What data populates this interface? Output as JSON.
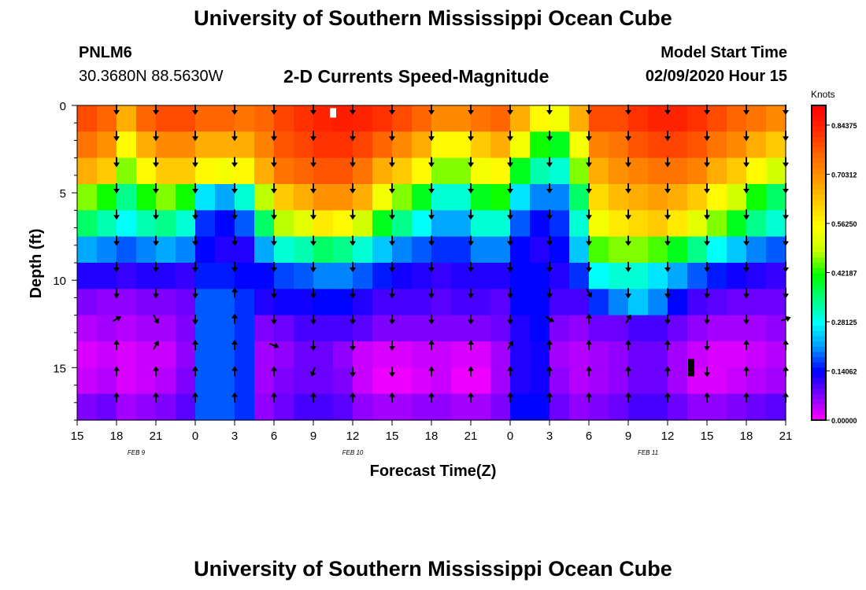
{
  "page": {
    "title": "University of Southern Mississippi Ocean Cube",
    "bottom_title": "University of Southern Mississippi Ocean Cube",
    "station": "PNLM6",
    "coords": "30.3680N 88.5630W",
    "subtitle": "2-D Currents Speed-Magnitude",
    "model_label": "Model Start Time",
    "model_time": "02/09/2020 Hour 15"
  },
  "chart_data": {
    "type": "heatmap",
    "title": "2-D Currents Speed-Magnitude",
    "xlabel": "Forecast Time(Z)",
    "ylabel": "Depth (ft)",
    "x_ticks": [
      "15",
      "18",
      "21",
      "0",
      "3",
      "6",
      "9",
      "12",
      "15",
      "18",
      "21",
      "0",
      "3",
      "6",
      "9",
      "12",
      "15",
      "18",
      "21"
    ],
    "x_day_labels": [
      {
        "label": "FEB 9",
        "at_tick": 1.5
      },
      {
        "label": "FEB 10",
        "at_tick": 7
      },
      {
        "label": "FEB 11",
        "at_tick": 14.5
      }
    ],
    "x_range_hours": [
      0,
      54
    ],
    "y_ticks": [
      0,
      5,
      10,
      15
    ],
    "y_range_ft": [
      0,
      18
    ],
    "colorbar": {
      "unit": "Knots",
      "min": 0,
      "max": 0.9,
      "labels": [
        "0.84375",
        "0.70312",
        "0.56250",
        "0.42187",
        "0.28125",
        "0.14062",
        "0.00000"
      ],
      "colors": [
        "#ff00ff",
        "#8000ff",
        "#0000ff",
        "#0096ff",
        "#00ffff",
        "#00ff80",
        "#00ff00",
        "#c8ff00",
        "#ffff00",
        "#ffc800",
        "#ff9600",
        "#ff6400",
        "#ff2800",
        "#ff0000"
      ]
    },
    "time_hours": [
      0,
      1.5,
      3,
      4.5,
      6,
      7.5,
      9,
      10.5,
      12,
      13.5,
      15,
      16.5,
      18,
      19.5,
      21,
      22.5,
      24,
      25.5,
      27,
      28.5,
      30,
      31.5,
      33,
      34.5,
      36,
      37.5,
      39,
      40.5,
      42,
      43.5,
      45,
      46.5,
      48,
      49.5,
      51,
      52.5
    ],
    "depth_ft": [
      0,
      1.5,
      3,
      4.5,
      6,
      7.5,
      9,
      10.5,
      12,
      13.5,
      15,
      16.5
    ],
    "speed_knots": [
      [
        0.79,
        0.76,
        0.66,
        0.76,
        0.79,
        0.79,
        0.76,
        0.76,
        0.74,
        0.76,
        0.8,
        0.82,
        0.84,
        0.85,
        0.84,
        0.82,
        0.79,
        0.76,
        0.71,
        0.71,
        0.74,
        0.76,
        0.66,
        0.56,
        0.54,
        0.66,
        0.79,
        0.79,
        0.82,
        0.84,
        0.84,
        0.82,
        0.79,
        0.76,
        0.74,
        0.71
      ],
      [
        0.74,
        0.7,
        0.56,
        0.66,
        0.71,
        0.71,
        0.66,
        0.66,
        0.66,
        0.72,
        0.78,
        0.8,
        0.82,
        0.82,
        0.8,
        0.76,
        0.71,
        0.66,
        0.56,
        0.56,
        0.62,
        0.66,
        0.54,
        0.42,
        0.4,
        0.54,
        0.72,
        0.74,
        0.78,
        0.8,
        0.8,
        0.78,
        0.74,
        0.71,
        0.66,
        0.62
      ],
      [
        0.66,
        0.62,
        0.46,
        0.56,
        0.62,
        0.62,
        0.56,
        0.54,
        0.56,
        0.66,
        0.74,
        0.76,
        0.78,
        0.78,
        0.74,
        0.66,
        0.62,
        0.56,
        0.46,
        0.46,
        0.54,
        0.56,
        0.4,
        0.32,
        0.3,
        0.46,
        0.66,
        0.7,
        0.72,
        0.74,
        0.74,
        0.72,
        0.66,
        0.62,
        0.56,
        0.5
      ],
      [
        0.46,
        0.42,
        0.34,
        0.42,
        0.46,
        0.42,
        0.26,
        0.22,
        0.3,
        0.48,
        0.62,
        0.66,
        0.7,
        0.7,
        0.66,
        0.54,
        0.46,
        0.4,
        0.3,
        0.3,
        0.4,
        0.42,
        0.26,
        0.2,
        0.2,
        0.36,
        0.6,
        0.64,
        0.66,
        0.68,
        0.66,
        0.62,
        0.56,
        0.5,
        0.42,
        0.36
      ],
      [
        0.36,
        0.32,
        0.28,
        0.32,
        0.34,
        0.3,
        0.16,
        0.14,
        0.18,
        0.36,
        0.48,
        0.52,
        0.58,
        0.56,
        0.5,
        0.4,
        0.34,
        0.28,
        0.22,
        0.22,
        0.3,
        0.3,
        0.18,
        0.14,
        0.16,
        0.3,
        0.54,
        0.58,
        0.6,
        0.62,
        0.58,
        0.52,
        0.46,
        0.4,
        0.34,
        0.3
      ],
      [
        0.22,
        0.2,
        0.18,
        0.2,
        0.22,
        0.2,
        0.14,
        0.12,
        0.12,
        0.22,
        0.3,
        0.32,
        0.36,
        0.34,
        0.3,
        0.24,
        0.2,
        0.18,
        0.16,
        0.16,
        0.2,
        0.2,
        0.14,
        0.12,
        0.14,
        0.24,
        0.44,
        0.46,
        0.46,
        0.44,
        0.4,
        0.34,
        0.28,
        0.24,
        0.2,
        0.18
      ],
      [
        0.12,
        0.12,
        0.11,
        0.12,
        0.12,
        0.11,
        0.15,
        0.15,
        0.14,
        0.14,
        0.17,
        0.18,
        0.2,
        0.2,
        0.18,
        0.15,
        0.13,
        0.12,
        0.11,
        0.12,
        0.12,
        0.12,
        0.14,
        0.14,
        0.12,
        0.16,
        0.28,
        0.3,
        0.3,
        0.26,
        0.22,
        0.18,
        0.15,
        0.13,
        0.12,
        0.11
      ],
      [
        0.07,
        0.06,
        0.06,
        0.07,
        0.07,
        0.08,
        0.18,
        0.18,
        0.16,
        0.12,
        0.13,
        0.13,
        0.14,
        0.14,
        0.12,
        0.1,
        0.1,
        0.1,
        0.09,
        0.1,
        0.1,
        0.09,
        0.14,
        0.14,
        0.1,
        0.1,
        0.16,
        0.2,
        0.24,
        0.2,
        0.14,
        0.1,
        0.09,
        0.08,
        0.08,
        0.08
      ],
      [
        0.04,
        0.05,
        0.04,
        0.05,
        0.05,
        0.07,
        0.18,
        0.18,
        0.16,
        0.07,
        0.08,
        0.1,
        0.1,
        0.1,
        0.09,
        0.07,
        0.07,
        0.07,
        0.07,
        0.07,
        0.07,
        0.08,
        0.12,
        0.14,
        0.07,
        0.06,
        0.08,
        0.08,
        0.1,
        0.1,
        0.08,
        0.06,
        0.05,
        0.05,
        0.05,
        0.06
      ],
      [
        0.02,
        0.03,
        0.02,
        0.03,
        0.03,
        0.06,
        0.18,
        0.18,
        0.16,
        0.05,
        0.06,
        0.08,
        0.08,
        0.06,
        0.03,
        0.02,
        0.02,
        0.03,
        0.03,
        0.02,
        0.02,
        0.05,
        0.12,
        0.13,
        0.05,
        0.04,
        0.05,
        0.06,
        0.08,
        0.08,
        0.05,
        0.03,
        0.02,
        0.02,
        0.03,
        0.04
      ],
      [
        0.03,
        0.04,
        0.02,
        0.03,
        0.04,
        0.07,
        0.18,
        0.18,
        0.16,
        0.05,
        0.07,
        0.08,
        0.08,
        0.07,
        0.03,
        0.01,
        0.01,
        0.02,
        0.03,
        0.01,
        0.01,
        0.05,
        0.12,
        0.13,
        0.06,
        0.04,
        0.05,
        0.06,
        0.08,
        0.08,
        0.05,
        0.02,
        0.02,
        0.03,
        0.04,
        0.05
      ],
      [
        0.07,
        0.08,
        0.05,
        0.06,
        0.07,
        0.09,
        0.18,
        0.18,
        0.16,
        0.06,
        0.08,
        0.1,
        0.1,
        0.09,
        0.06,
        0.05,
        0.05,
        0.06,
        0.06,
        0.05,
        0.05,
        0.07,
        0.14,
        0.14,
        0.08,
        0.06,
        0.07,
        0.08,
        0.1,
        0.1,
        0.08,
        0.06,
        0.06,
        0.07,
        0.08,
        0.09
      ]
    ],
    "vector_times_hours": [
      3,
      6,
      9,
      12,
      15,
      18,
      21,
      24,
      27,
      30,
      33,
      36,
      39,
      42,
      45,
      48,
      51,
      54
    ],
    "vector_depths_ft": [
      0,
      1.5,
      3,
      4.5,
      6,
      7.5,
      9,
      10.5,
      12,
      13.5,
      15,
      16.5
    ],
    "vector_direction_rows_deg": [
      [
        180,
        180,
        180,
        180,
        180,
        180,
        180,
        180,
        180,
        180,
        180,
        180,
        180,
        180,
        180,
        180,
        180,
        180
      ],
      [
        180,
        180,
        180,
        180,
        180,
        180,
        180,
        180,
        180,
        180,
        180,
        180,
        180,
        180,
        180,
        180,
        180,
        180
      ],
      [
        180,
        180,
        180,
        180,
        180,
        180,
        180,
        180,
        180,
        180,
        180,
        180,
        180,
        180,
        180,
        180,
        180,
        180
      ],
      [
        180,
        180,
        180,
        180,
        180,
        180,
        180,
        180,
        180,
        180,
        180,
        180,
        180,
        180,
        180,
        180,
        180,
        180
      ],
      [
        180,
        180,
        180,
        180,
        180,
        180,
        180,
        180,
        180,
        180,
        180,
        180,
        180,
        180,
        180,
        180,
        180,
        180
      ],
      [
        180,
        180,
        180,
        180,
        180,
        180,
        180,
        180,
        180,
        180,
        180,
        180,
        180,
        180,
        180,
        180,
        180,
        180
      ],
      [
        180,
        180,
        180,
        180,
        180,
        180,
        180,
        180,
        180,
        180,
        180,
        180,
        180,
        180,
        180,
        180,
        180,
        180
      ],
      [
        180,
        180,
        180,
        0,
        180,
        180,
        180,
        180,
        180,
        180,
        180,
        180,
        150,
        180,
        180,
        180,
        180,
        180
      ],
      [
        60,
        150,
        180,
        0,
        180,
        180,
        180,
        180,
        180,
        180,
        180,
        120,
        0,
        30,
        180,
        180,
        180,
        70
      ],
      [
        0,
        30,
        0,
        0,
        110,
        180,
        180,
        180,
        0,
        0,
        30,
        0,
        0,
        0,
        0,
        180,
        0,
        0
      ],
      [
        0,
        0,
        0,
        0,
        0,
        200,
        180,
        180,
        0,
        0,
        0,
        0,
        0,
        0,
        0,
        180,
        0,
        0
      ],
      [
        0,
        0,
        0,
        0,
        0,
        0,
        0,
        0,
        0,
        0,
        0,
        0,
        0,
        0,
        0,
        0,
        0,
        0
      ]
    ],
    "markers": [
      {
        "type": "white-bar",
        "time_hours": 19.5,
        "depth_ft": 0.2
      },
      {
        "type": "black-bar",
        "time_hours": 46.8,
        "depth_ft": 15.0
      }
    ]
  }
}
